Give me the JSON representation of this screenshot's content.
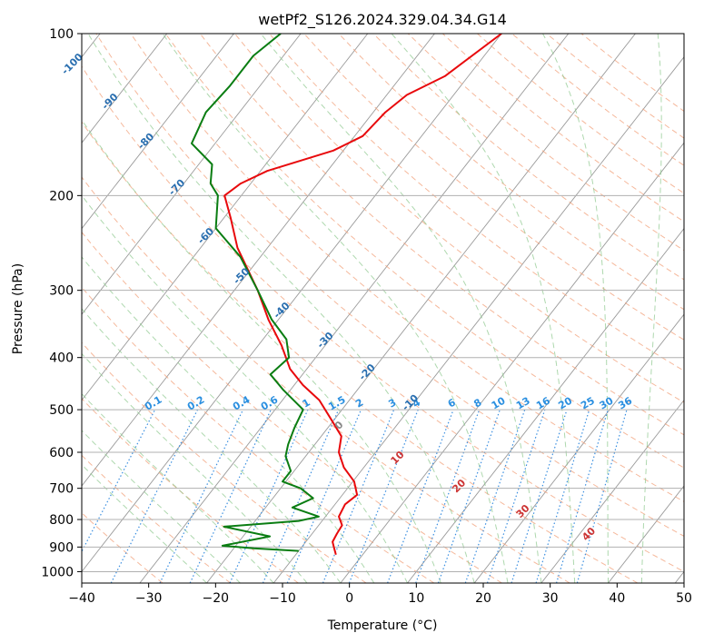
{
  "chart_data": {
    "type": "line",
    "subtype": "skew-t log-p",
    "title": "wetPf2_S126.2024.329.04.34.G14",
    "xlabel": "Temperature (°C)",
    "ylabel": "Pressure (hPa)",
    "xlim": [
      -40,
      50
    ],
    "ylim": [
      1050,
      100
    ],
    "y_scale": "log",
    "x_ticks": [
      -40,
      -30,
      -20,
      -10,
      0,
      10,
      20,
      30,
      40,
      50
    ],
    "y_ticks": [
      100,
      200,
      300,
      400,
      500,
      600,
      700,
      800,
      900,
      1000
    ],
    "grid": true,
    "colors": {
      "temperature": "#e8090c",
      "dewpoint": "#0a7d12",
      "dry_adiabat": "#f2a07a",
      "moist_adiabat": "#8cc88c",
      "mixing_ratio": "#3b8fe0",
      "isotherm": "#9a9a9a",
      "grid": "#b0b0b0"
    },
    "series": [
      {
        "key": "temperature",
        "points": [
          [
            100,
            -40.0
          ],
          [
            120,
            -43.5
          ],
          [
            130,
            -47.0
          ],
          [
            140,
            -48.2
          ],
          [
            155,
            -48.8
          ],
          [
            165,
            -51.5
          ],
          [
            180,
            -59.0
          ],
          [
            190,
            -61.5
          ],
          [
            200,
            -62.5
          ],
          [
            220,
            -59.0
          ],
          [
            250,
            -54.5
          ],
          [
            300,
            -46.5
          ],
          [
            340,
            -41.5
          ],
          [
            380,
            -36.5
          ],
          [
            420,
            -32.5
          ],
          [
            450,
            -28.7
          ],
          [
            480,
            -24.5
          ],
          [
            520,
            -20.6
          ],
          [
            560,
            -17.0
          ],
          [
            600,
            -15.5
          ],
          [
            640,
            -13.0
          ],
          [
            680,
            -9.8
          ],
          [
            720,
            -7.8
          ],
          [
            750,
            -8.5
          ],
          [
            790,
            -8.0
          ],
          [
            820,
            -6.5
          ],
          [
            850,
            -6.3
          ],
          [
            880,
            -6.0
          ],
          [
            905,
            -5.0
          ],
          [
            930,
            -4.0
          ]
        ]
      },
      {
        "key": "dewpoint",
        "points": [
          [
            100,
            -73.0
          ],
          [
            110,
            -74.5
          ],
          [
            125,
            -74.5
          ],
          [
            140,
            -75.0
          ],
          [
            160,
            -73.5
          ],
          [
            175,
            -68.0
          ],
          [
            190,
            -66.0
          ],
          [
            200,
            -63.5
          ],
          [
            230,
            -60.0
          ],
          [
            260,
            -53.0
          ],
          [
            300,
            -46.5
          ],
          [
            340,
            -41.0
          ],
          [
            370,
            -36.5
          ],
          [
            400,
            -34.0
          ],
          [
            430,
            -34.8
          ],
          [
            460,
            -31.0
          ],
          [
            500,
            -25.8
          ],
          [
            540,
            -25.0
          ],
          [
            580,
            -24.0
          ],
          [
            610,
            -23.0
          ],
          [
            650,
            -20.5
          ],
          [
            680,
            -20.5
          ],
          [
            700,
            -17.0
          ],
          [
            730,
            -14.0
          ],
          [
            760,
            -16.0
          ],
          [
            790,
            -11.0
          ],
          [
            805,
            -13.5
          ],
          [
            825,
            -24.0
          ],
          [
            860,
            -16.0
          ],
          [
            895,
            -22.0
          ],
          [
            905,
            -17.0
          ],
          [
            915,
            -10.0
          ]
        ]
      }
    ],
    "isotherm_labels": [
      "-100",
      "-90",
      "-80",
      "-70",
      "-60",
      "-50",
      "-40",
      "-30",
      "-20",
      "-10"
    ],
    "mixing_ratio_labels": [
      "0.1",
      "0.2",
      "0.4",
      "0.6",
      "1",
      "1.5",
      "2",
      "3",
      "4",
      "6",
      "8",
      "10",
      "13",
      "16",
      "20",
      "25",
      "30",
      "36"
    ],
    "moist_adiabat_labels": [
      "0",
      "10",
      "20",
      "30",
      "40"
    ]
  }
}
